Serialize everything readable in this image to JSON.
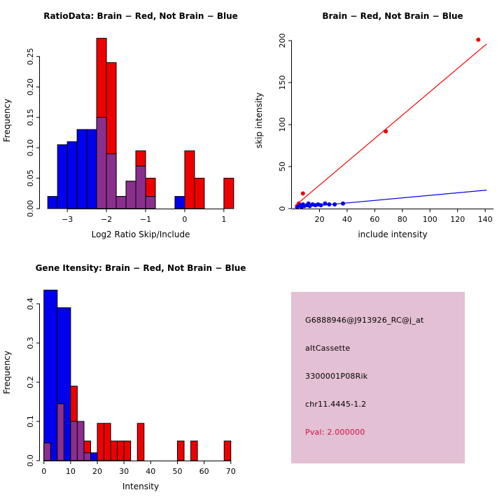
{
  "colors": {
    "red": "#EE0000",
    "blue": "#0000EE",
    "overlap": "#8B2F8F",
    "axis": "#000000",
    "background": "#FFFFFF",
    "info_box_bg": "#E3C0D3",
    "pval": "#CC1144"
  },
  "chart_data": [
    {
      "type": "bar",
      "subtype": "overlaid-histogram",
      "title": "RatioData: Brain − Red, Not Brain − Blue",
      "xlabel": "Log2 Ratio Skip/Include",
      "ylabel": "Frequency",
      "xlim": [
        -3.7,
        1.45
      ],
      "ylim": [
        0,
        0.29
      ],
      "xticks": [
        -3,
        -2,
        -1,
        0,
        1
      ],
      "yticks": [
        0,
        0.05,
        0.1,
        0.15,
        0.2,
        0.25
      ],
      "ytick_labels": [
        "0.00",
        "0.05",
        "0.10",
        "0.15",
        "0.20",
        "0.25"
      ],
      "axis_span": "ticks",
      "grid": false,
      "legend": "none",
      "blue_width": 0.25,
      "red_width": 0.25,
      "blue_bins": [
        {
          "x": -3.5,
          "h": 0.02
        },
        {
          "x": -3.25,
          "h": 0.105
        },
        {
          "x": -3.0,
          "h": 0.11
        },
        {
          "x": -2.75,
          "h": 0.13
        },
        {
          "x": -2.5,
          "h": 0.13
        },
        {
          "x": -2.25,
          "h": 0.15
        },
        {
          "x": -2.0,
          "h": 0.09
        },
        {
          "x": -1.75,
          "h": 0.02
        },
        {
          "x": -1.5,
          "h": 0.045
        },
        {
          "x": -1.25,
          "h": 0.07
        },
        {
          "x": -1.0,
          "h": 0.02
        },
        {
          "x": -0.25,
          "h": 0.02
        }
      ],
      "red_bins": [
        {
          "x": -2.25,
          "h": 0.28
        },
        {
          "x": -2.0,
          "h": 0.24
        },
        {
          "x": -1.75,
          "h": 0.02
        },
        {
          "x": -1.5,
          "h": 0.045
        },
        {
          "x": -1.25,
          "h": 0.095
        },
        {
          "x": -1.0,
          "h": 0.05
        },
        {
          "x": 0.0,
          "h": 0.095
        },
        {
          "x": 0.25,
          "h": 0.05
        },
        {
          "x": 1.0,
          "h": 0.05
        }
      ]
    },
    {
      "type": "scatter",
      "title": "Brain − Red, Not Brain − Blue",
      "xlabel": "include intensity",
      "ylabel": "skip intensity",
      "xlim": [
        0,
        146
      ],
      "ylim": [
        0,
        210
      ],
      "xticks": [
        20,
        40,
        60,
        80,
        100,
        120,
        140
      ],
      "yticks": [
        0,
        50,
        100,
        150,
        200
      ],
      "axis_span": "full",
      "grid": false,
      "legend": "none",
      "series": [
        {
          "name": "Brain",
          "color_key": "red",
          "points": [
            [
              5,
              6
            ],
            [
              8,
              18
            ],
            [
              68,
              92
            ],
            [
              135,
              201
            ]
          ],
          "fit_line": [
            [
              2,
              3
            ],
            [
              141,
              196
            ]
          ]
        },
        {
          "name": "Not Brain",
          "color_key": "blue",
          "points": [
            [
              4,
              2
            ],
            [
              6,
              4
            ],
            [
              7,
              2
            ],
            [
              8,
              5
            ],
            [
              9,
              3
            ],
            [
              11,
              4
            ],
            [
              12,
              6
            ],
            [
              13,
              3
            ],
            [
              15,
              5
            ],
            [
              17,
              4
            ],
            [
              19,
              5
            ],
            [
              21,
              4
            ],
            [
              24,
              6
            ],
            [
              27,
              5
            ],
            [
              31,
              5
            ],
            [
              37,
              6
            ]
          ],
          "fit_line": [
            [
              2,
              1
            ],
            [
              141,
              22
            ]
          ]
        }
      ]
    },
    {
      "type": "bar",
      "subtype": "overlaid-histogram",
      "title": "Gene Itensity: Brain − Red, Not Brain − Blue",
      "xlabel": "Intensity",
      "ylabel": "Frequency",
      "xlim": [
        -1.5,
        74
      ],
      "ylim": [
        0,
        0.45
      ],
      "xticks": [
        0,
        10,
        20,
        30,
        40,
        50,
        60,
        70
      ],
      "yticks": [
        0,
        0.1,
        0.2,
        0.3,
        0.4
      ],
      "ytick_labels": [
        "0.0",
        "0.1",
        "0.2",
        "0.3",
        "0.4"
      ],
      "axis_span": "ticks",
      "grid": false,
      "legend": "none",
      "blue_width": 5,
      "red_width": 2.5,
      "blue_bins": [
        {
          "x": 0,
          "h": 0.435
        },
        {
          "x": 5,
          "h": 0.39
        },
        {
          "x": 10,
          "h": 0.1
        },
        {
          "x": 15,
          "h": 0.02
        }
      ],
      "red_bins": [
        {
          "x": 0,
          "h": 0.045
        },
        {
          "x": 5,
          "h": 0.145
        },
        {
          "x": 10,
          "h": 0.19
        },
        {
          "x": 12.5,
          "h": 0.1
        },
        {
          "x": 15,
          "h": 0.05
        },
        {
          "x": 20,
          "h": 0.095
        },
        {
          "x": 22.5,
          "h": 0.095
        },
        {
          "x": 25,
          "h": 0.05
        },
        {
          "x": 27.5,
          "h": 0.05
        },
        {
          "x": 30,
          "h": 0.05
        },
        {
          "x": 35,
          "h": 0.095
        },
        {
          "x": 50,
          "h": 0.05
        },
        {
          "x": 55,
          "h": 0.05
        },
        {
          "x": 67.5,
          "h": 0.05
        }
      ]
    }
  ],
  "info_box": {
    "lines": [
      "G6888946@J913926_RC@j_at",
      "altCassette",
      "3300001P08Rik",
      "chr11.4445-1.2"
    ],
    "pval": "Pval: 2.000000"
  }
}
